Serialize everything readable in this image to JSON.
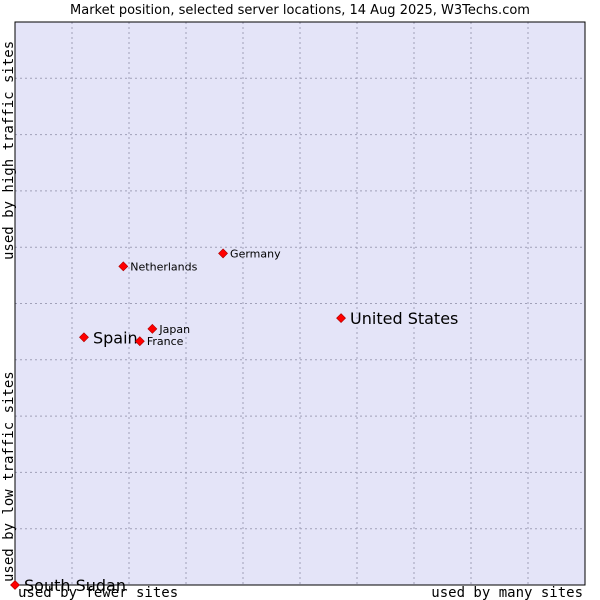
{
  "chart_data": {
    "type": "scatter",
    "title": "Market position, selected server locations, 14 Aug 2025, W3Techs.com",
    "xlabel_left": "used by fewer sites",
    "xlabel_right": "used by many sites",
    "ylabel_bottom": "used by low traffic sites",
    "ylabel_top": "used by high traffic sites",
    "xlim": [
      0,
      100
    ],
    "ylim": [
      0,
      100
    ],
    "grid": true,
    "colors": {
      "plot_background": "#e4e4f8",
      "marker": "#ff0000",
      "grid": "#a0a0b8",
      "frame": "#000000"
    },
    "points": [
      {
        "name": "United States",
        "x": 57.2,
        "y": 47.4,
        "size": "large"
      },
      {
        "name": "Germany",
        "x": 36.5,
        "y": 58.9,
        "size": "small"
      },
      {
        "name": "Netherlands",
        "x": 19.0,
        "y": 56.6,
        "size": "small"
      },
      {
        "name": "Spain",
        "x": 12.1,
        "y": 44.0,
        "size": "large"
      },
      {
        "name": "Japan",
        "x": 24.1,
        "y": 45.5,
        "size": "small"
      },
      {
        "name": "France",
        "x": 21.9,
        "y": 43.3,
        "size": "small"
      },
      {
        "name": "South Sudan",
        "x": 0.0,
        "y": 0.0,
        "size": "large"
      }
    ]
  }
}
